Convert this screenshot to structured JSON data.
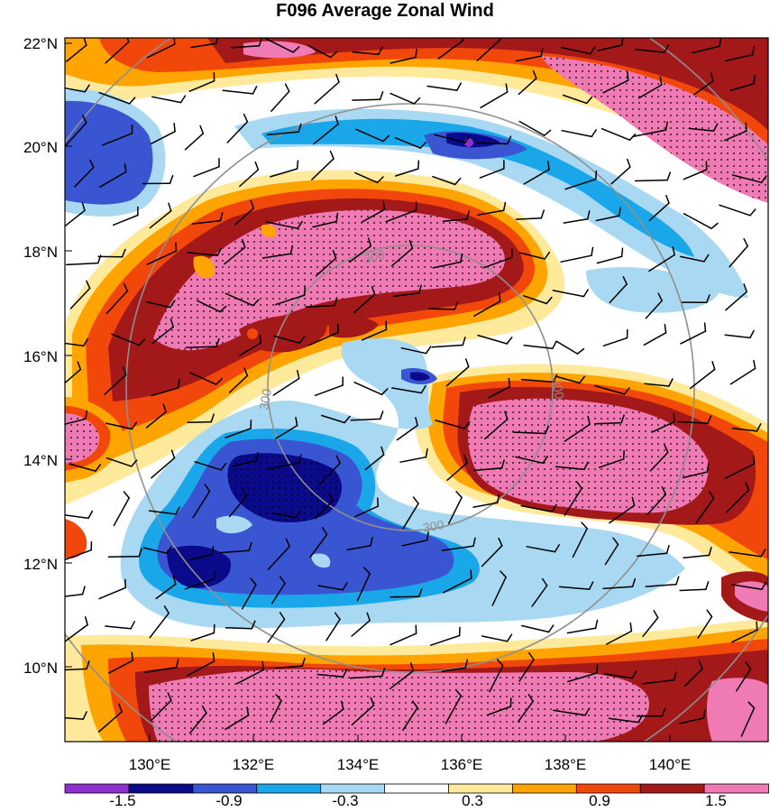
{
  "title": "F096 Average Zonal Wind",
  "map": {
    "lat_labels": [
      "22°N",
      "20°N",
      "18°N",
      "16°N",
      "14°N",
      "12°N",
      "10°N"
    ],
    "lon_labels": [
      "130°E",
      "132°E",
      "134°E",
      "136°E",
      "138°E",
      "140°E"
    ],
    "range_ring_label": "300",
    "stipple_note": "",
    "fill_colors": {
      "lt_-1.5": "#8e2fd0",
      "-1.5_-1.2": "#0a0a8a",
      "-1.2_-0.9": "#3a55d2",
      "-0.9_-0.6": "#1aa7ea",
      "-0.6_-0.3": "#a8d8f2",
      "-0.3_0.3": "#ffffff",
      "0.3_0.6": "#ffe99a",
      "0.6_0.9": "#ffa400",
      "0.9_1.2": "#f2470a",
      "1.2_1.5": "#a31818",
      "gt_1.5": "#ef7ab4"
    },
    "ring_color": "#8f8f8f"
  },
  "colorbar": {
    "colors": [
      "#8e2fd0",
      "#0a0a8a",
      "#3a55d2",
      "#1aa7ea",
      "#a8d8f2",
      "#ffffff",
      "#ffe99a",
      "#ffa400",
      "#f2470a",
      "#a31818",
      "#ef7ab4"
    ],
    "labels": [
      "-1.5",
      "-0.9",
      "-0.3",
      "0.3",
      "0.9",
      "1.5"
    ]
  }
}
